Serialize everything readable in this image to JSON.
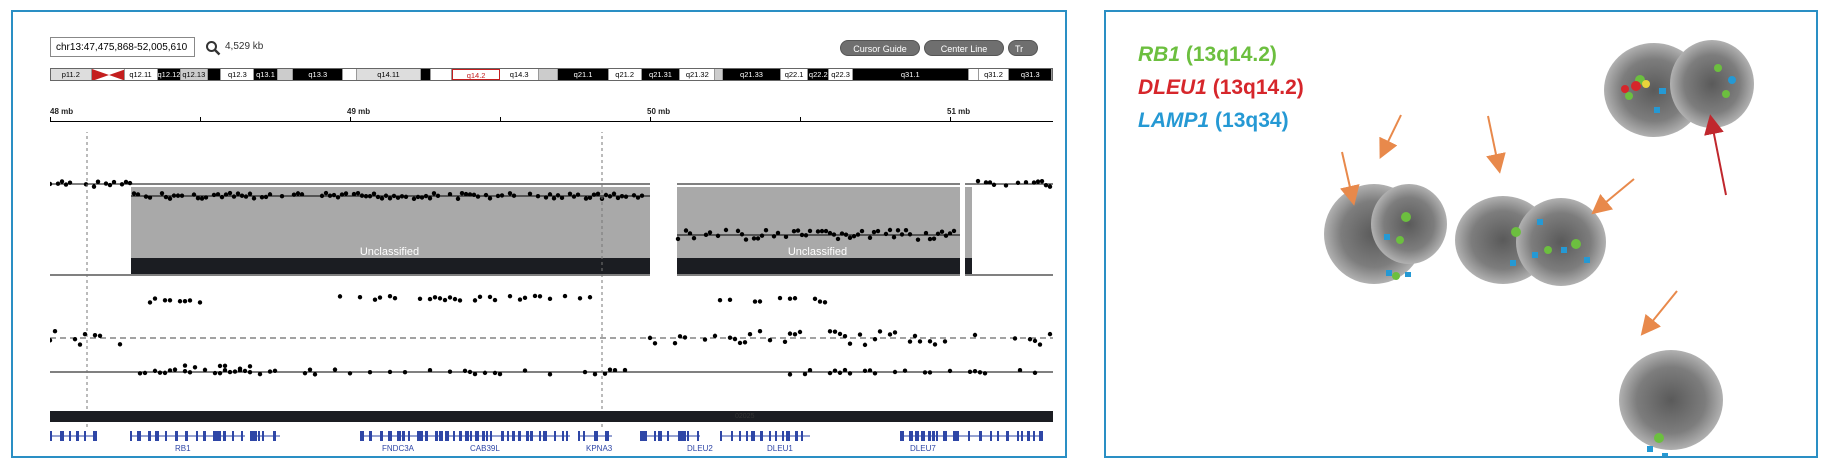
{
  "genome_browser": {
    "locus": "chr13:47,475,868-52,005,610",
    "size": "4,529 kb",
    "buttons": [
      "Cursor Guide",
      "Center Line",
      "Tr"
    ],
    "ideogram_bands": [
      {
        "label": "p11.2",
        "fill": "#dddddd",
        "text": "#000",
        "w": 42
      },
      {
        "label": "",
        "fill": "#c41e1e",
        "text": "#fff",
        "w": 34,
        "centromere": true
      },
      {
        "label": "q12.11",
        "fill": "#ffffff",
        "text": "#000",
        "w": 34
      },
      {
        "label": "q12.12",
        "fill": "#000000",
        "text": "#fff",
        "w": 24
      },
      {
        "label": "q12.13",
        "fill": "#cccccc",
        "text": "#000",
        "w": 28
      },
      {
        "label": "",
        "fill": "#000000",
        "text": "#fff",
        "w": 14
      },
      {
        "label": "q12.3",
        "fill": "#ffffff",
        "text": "#000",
        "w": 34
      },
      {
        "label": "q13.1",
        "fill": "#000000",
        "text": "#fff",
        "w": 24
      },
      {
        "label": "",
        "fill": "#cccccc",
        "text": "#000",
        "w": 16
      },
      {
        "label": "q13.3",
        "fill": "#000000",
        "text": "#fff",
        "w": 52
      },
      {
        "label": "",
        "fill": "#ffffff",
        "text": "#000",
        "w": 14
      },
      {
        "label": "q14.11",
        "fill": "#dddddd",
        "text": "#000",
        "w": 66
      },
      {
        "label": "",
        "fill": "#000000",
        "text": "#fff",
        "w": 10
      },
      {
        "label": "",
        "fill": "#ffffff",
        "text": "#000",
        "w": 22
      },
      {
        "label": "q14.2",
        "fill": "#ffffff",
        "text": "#c41e1e",
        "w": 50,
        "selected": true
      },
      {
        "label": "q14.3",
        "fill": "#ffffff",
        "text": "#000",
        "w": 40
      },
      {
        "label": "",
        "fill": "#cccccc",
        "text": "#000",
        "w": 20
      },
      {
        "label": "q21.1",
        "fill": "#000000",
        "text": "#fff",
        "w": 52
      },
      {
        "label": "q21.2",
        "fill": "#ffffff",
        "text": "#000",
        "w": 34
      },
      {
        "label": "q21.31",
        "fill": "#000000",
        "text": "#fff",
        "w": 40
      },
      {
        "label": "q21.32",
        "fill": "#ffffff",
        "text": "#000",
        "w": 36
      },
      {
        "label": "",
        "fill": "#cccccc",
        "text": "#000",
        "w": 8
      },
      {
        "label": "q21.33",
        "fill": "#000000",
        "text": "#fff",
        "w": 60
      },
      {
        "label": "q22.1",
        "fill": "#ffffff",
        "text": "#000",
        "w": 28
      },
      {
        "label": "q22.2",
        "fill": "#000000",
        "text": "#fff",
        "w": 22
      },
      {
        "label": "q22.3",
        "fill": "#ffffff",
        "text": "#000",
        "w": 24
      },
      {
        "label": "q31.1",
        "fill": "#000000",
        "text": "#fff",
        "w": 120
      },
      {
        "label": "",
        "fill": "#ffffff",
        "text": "#000",
        "w": 10
      },
      {
        "label": "q31.2",
        "fill": "#ffffff",
        "text": "#000",
        "w": 32
      },
      {
        "label": "q31.3",
        "fill": "#000000",
        "text": "#fff",
        "w": 44
      }
    ],
    "ruler_labels": [
      "48 mb",
      "49 mb",
      "50 mb",
      "51 mb"
    ],
    "segments": [
      "Unclassified",
      "Unclassified"
    ],
    "track_id": "02025",
    "genes": [
      "RB1",
      "FNDC3A",
      "CAB39L",
      "KPNA3",
      "DLEU2",
      "DLEU1",
      "DLEU7"
    ]
  },
  "fish_legend": [
    {
      "gene": "RB1",
      "band": "(13q14.2)",
      "color": "#6cbf3f"
    },
    {
      "gene": "DLEU1",
      "band": "(13q14.2)",
      "color": "#d6262b"
    },
    {
      "gene": "LAMP1",
      "band": "(13q34)",
      "color": "#2599d4"
    }
  ],
  "colors": {
    "frame": "#2a8fc4",
    "arrow_orange": "#e8894b",
    "arrow_red": "#c0272d",
    "segment_fill": "#a9a9a9",
    "segment_bar": "#1b1d22"
  }
}
